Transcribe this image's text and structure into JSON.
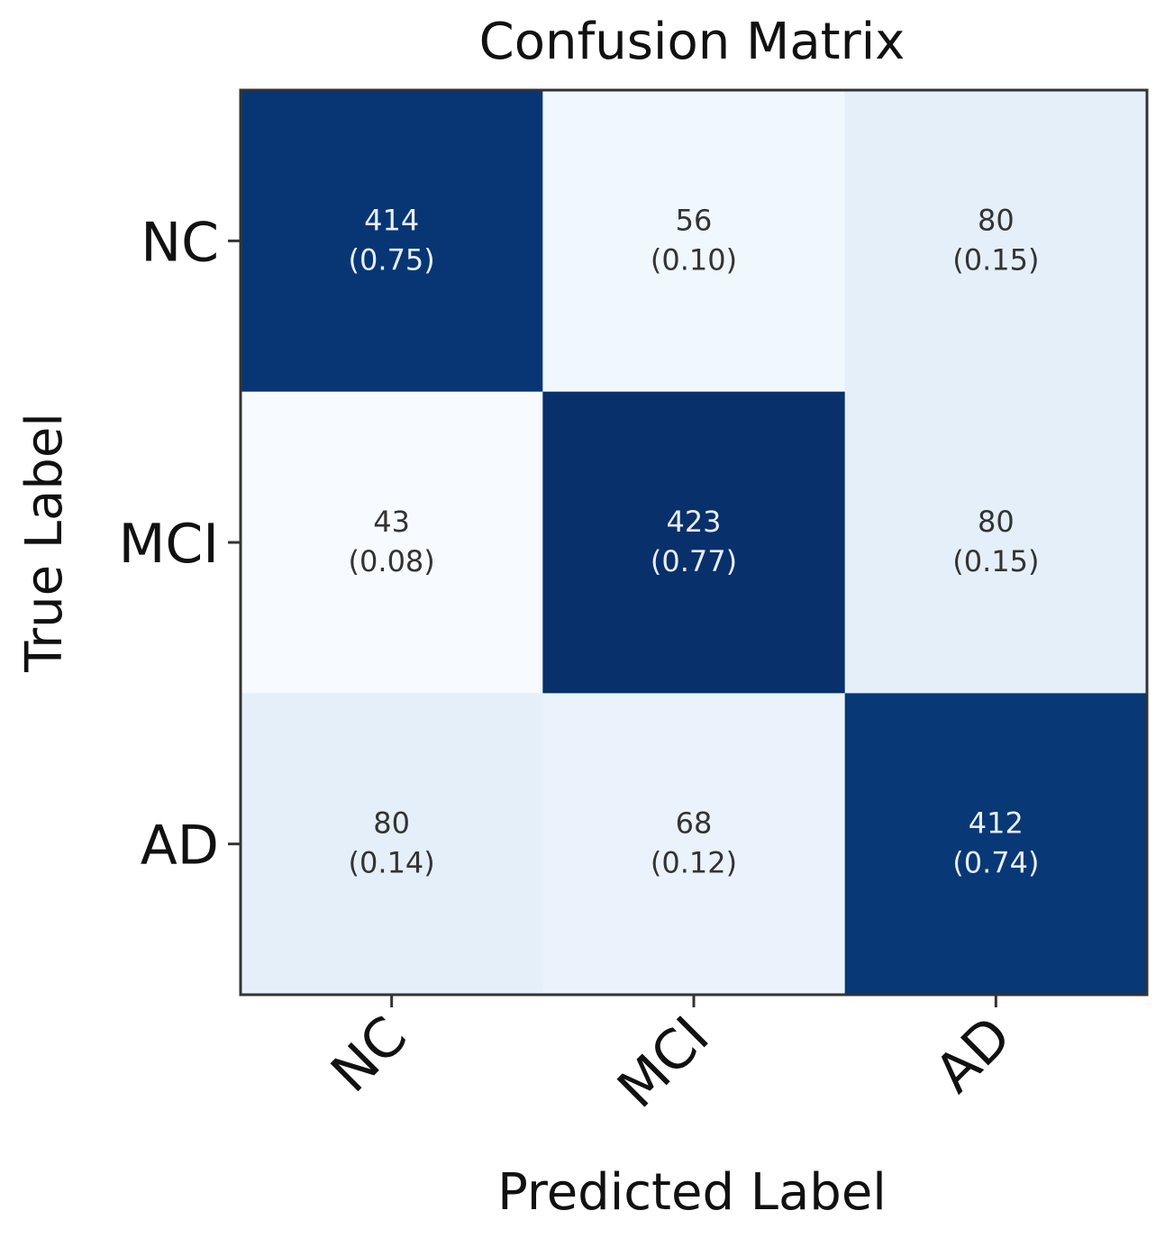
{
  "chart_data": {
    "type": "heatmap",
    "title": "Confusion Matrix",
    "xlabel": "Predicted Label",
    "ylabel": "True Label",
    "x_categories": [
      "NC",
      "MCI",
      "AD"
    ],
    "y_categories": [
      "NC",
      "MCI",
      "AD"
    ],
    "values": [
      [
        414,
        56,
        80
      ],
      [
        43,
        423,
        80
      ],
      [
        80,
        68,
        412
      ]
    ],
    "normalized": [
      [
        "(0.75)",
        "(0.10)",
        "(0.15)"
      ],
      [
        "(0.08)",
        "(0.77)",
        "(0.15)"
      ],
      [
        "(0.14)",
        "(0.12)",
        "(0.74)"
      ]
    ],
    "colormap": "Blues",
    "colors": {
      "light": "#f7fbff",
      "dark": "#08306b",
      "text_dark": "#333333",
      "text_light": "#e8eef8",
      "frame": "#333333"
    },
    "x_tick_rotation": -45
  }
}
